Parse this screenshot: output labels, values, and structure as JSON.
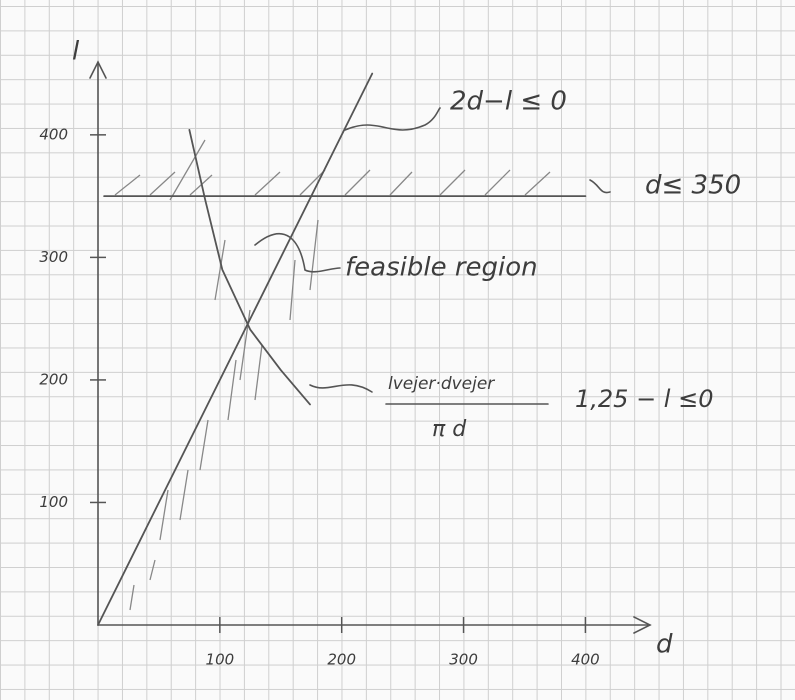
{
  "chart_data": {
    "type": "line",
    "x_label": "d",
    "y_label": "l",
    "xlim": [
      0,
      453
    ],
    "ylim": [
      0,
      457
    ],
    "xticks": [
      100,
      200,
      300,
      400
    ],
    "yticks": [
      100,
      200,
      300,
      400
    ],
    "color": "#555555",
    "series": [
      {
        "name": "2d−l ≤ 0",
        "x": [
          0,
          225
        ],
        "values": [
          0,
          450
        ]
      },
      {
        "name": "d≤ 350",
        "x": [
          5,
          400
        ],
        "values": [
          350,
          350
        ]
      },
      {
        "name_numerator": "lvejer·dvejer",
        "name_denominator": "π d",
        "name_rest": "1,25 − l ≤0",
        "x": [
          75,
          88,
          102,
          125,
          150,
          174
        ],
        "values": [
          404,
          347,
          290,
          241,
          208,
          180
        ]
      }
    ],
    "annotations": [
      "feasible region"
    ]
  }
}
